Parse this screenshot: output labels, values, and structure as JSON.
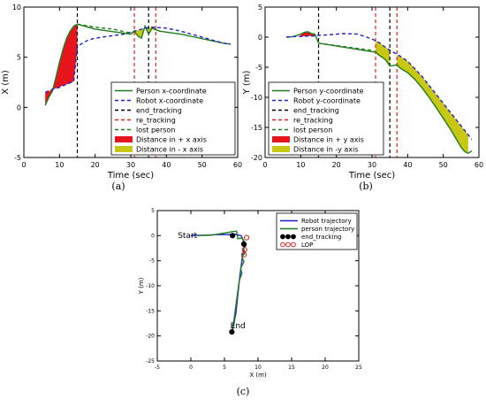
{
  "panels": [
    {
      "caption": "(a)",
      "chart_data": {
        "type": "line",
        "xlabel": "Time (sec)",
        "ylabel": "X (m)",
        "xlim": [
          0,
          60
        ],
        "ylim": [
          -5,
          10
        ],
        "xticks": [
          0,
          10,
          20,
          30,
          40,
          50,
          60
        ],
        "yticks": [
          -5,
          0,
          5,
          10
        ],
        "series": [
          {
            "name": "Person x-coordinate",
            "color": "#1e7e1e",
            "style": "solid",
            "x": [
              6,
              7,
              8,
              9,
              10,
              11,
              12,
              13,
              14,
              15,
              16,
              18,
              20,
              22,
              24,
              26,
              28,
              30,
              31,
              32,
              33,
              34,
              35,
              36,
              38,
              40,
              44,
              48,
              52,
              56,
              58
            ],
            "y": [
              0.2,
              1.0,
              1.6,
              3.0,
              4.5,
              5.8,
              6.9,
              7.6,
              8.1,
              8.3,
              8.2,
              8.0,
              7.8,
              7.7,
              7.6,
              7.5,
              7.4,
              7.3,
              7.6,
              7.1,
              6.9,
              8.1,
              7.3,
              7.9,
              7.6,
              7.5,
              7.3,
              7.0,
              6.7,
              6.4,
              6.3
            ]
          },
          {
            "name": "Robot x-coordinate",
            "color": "#1f1fd0",
            "style": "dashed",
            "x": [
              6,
              8,
              10,
              12,
              14,
              15,
              16,
              18,
              20,
              24,
              28,
              30,
              32,
              34,
              36,
              40,
              44,
              48,
              52,
              56,
              58
            ],
            "y": [
              1.5,
              1.8,
              2.0,
              2.3,
              2.6,
              6.0,
              6.3,
              6.7,
              6.9,
              7.1,
              7.3,
              7.5,
              7.7,
              7.9,
              8.0,
              7.9,
              7.6,
              7.2,
              6.8,
              6.4,
              6.3
            ]
          },
          {
            "name": "lost person",
            "color": "#1e7e1e",
            "style": "dashed",
            "x": [
              15,
              20,
              25,
              30,
              31
            ],
            "y": [
              8.3,
              8.0,
              7.8,
              7.4,
              7.6
            ]
          }
        ],
        "vlines": [
          {
            "name": "end_tracking",
            "x": [
              15,
              35
            ],
            "color": "#000000"
          },
          {
            "name": "re_tracking",
            "x": [
              31,
              37
            ],
            "color": "#e0201e"
          }
        ],
        "fills": [
          {
            "name": "Distance in + x axis",
            "color": "#e8141c",
            "x": [
              6,
              7,
              8,
              9,
              10,
              11,
              12,
              13,
              14,
              15
            ],
            "y1": [
              0.2,
              1.0,
              1.6,
              3.0,
              4.5,
              5.8,
              6.9,
              7.6,
              8.1,
              8.3
            ],
            "y2": [
              1.5,
              1.6,
              1.8,
              1.9,
              2.0,
              2.2,
              2.3,
              2.4,
              2.6,
              6.0
            ]
          },
          {
            "name": "Distance in - x axis",
            "color": "#c8c814",
            "x": [
              31,
              32,
              33,
              34,
              35,
              36,
              37
            ],
            "y1": [
              7.6,
              7.1,
              6.9,
              8.1,
              7.3,
              7.9,
              7.6
            ],
            "y2": [
              7.6,
              7.7,
              7.8,
              7.9,
              7.9,
              8.0,
              8.0
            ]
          }
        ],
        "legend": [
          "Person x-coordinate",
          "Robot x-coordinate",
          "end_tracking",
          "re_tracking",
          "lost person",
          "Distance in + x axis",
          "Distance in - x axis"
        ],
        "legend_position": "bottom-right",
        "grid": false
      }
    },
    {
      "caption": "(b)",
      "chart_data": {
        "type": "line",
        "xlabel": "Time (sec)",
        "ylabel": "Y (m)",
        "xlim": [
          0,
          60
        ],
        "ylim": [
          -20,
          5
        ],
        "xticks": [
          0,
          10,
          20,
          30,
          40,
          50,
          60
        ],
        "yticks": [
          -20,
          -15,
          -10,
          -5,
          0,
          5
        ],
        "series": [
          {
            "name": "Person y-coordinate",
            "color": "#1e7e1e",
            "style": "solid",
            "x": [
              6,
              8,
              10,
              11,
              12,
              13,
              14,
              15,
              31,
              32,
              33,
              34,
              35,
              37,
              38,
              40,
              42,
              44,
              46,
              48,
              50,
              52,
              54,
              55,
              56,
              57,
              58
            ],
            "y": [
              0.0,
              0.1,
              0.5,
              0.8,
              0.9,
              0.6,
              0.5,
              -1.0,
              -2.5,
              -3.0,
              -3.4,
              -3.9,
              -4.8,
              -4.6,
              -5.2,
              -5.9,
              -7.0,
              -8.4,
              -10.0,
              -11.7,
              -13.5,
              -15.3,
              -17.3,
              -18.3,
              -19.0,
              -19.3,
              -18.9
            ]
          },
          {
            "name": "Robot y-coordinate",
            "color": "#1f1fd0",
            "style": "dashed",
            "x": [
              6,
              8,
              10,
              12,
              14,
              15,
              18,
              22,
              26,
              30,
              32,
              34,
              36,
              38,
              40,
              44,
              48,
              52,
              56,
              58
            ],
            "y": [
              0.0,
              0.1,
              0.1,
              0.2,
              0.2,
              0.3,
              0.4,
              0.6,
              0.5,
              -0.3,
              -0.9,
              -1.8,
              -2.5,
              -3.2,
              -4.0,
              -6.5,
              -9.5,
              -12.5,
              -15.5,
              -17.0
            ]
          },
          {
            "name": "lost person",
            "color": "#1e7e1e",
            "style": "dashed",
            "x": [
              15,
              20,
              25,
              30,
              31
            ],
            "y": [
              -1.0,
              -1.4,
              -1.8,
              -2.2,
              -2.5
            ]
          }
        ],
        "vlines": [
          {
            "name": "end_tracking",
            "x": [
              15,
              35
            ],
            "color": "#000000"
          },
          {
            "name": "re_tracking",
            "x": [
              31,
              37
            ],
            "color": "#e0201e"
          }
        ],
        "fills": [
          {
            "name": "Distance in + y axis",
            "color": "#e8141c",
            "x": [
              10,
              11,
              12,
              13,
              14
            ],
            "y1": [
              0.5,
              0.8,
              0.9,
              0.6,
              0.5
            ],
            "y2": [
              0.1,
              0.15,
              0.2,
              0.2,
              0.2
            ]
          },
          {
            "name": "Distance in -y axis",
            "color": "#c8c814",
            "x": [
              31,
              32,
              33,
              34,
              35
            ],
            "y1": [
              -2.5,
              -3.0,
              -3.4,
              -3.9,
              -4.8
            ],
            "y2": [
              -0.6,
              -0.9,
              -1.3,
              -1.8,
              -2.1
            ]
          },
          {
            "name": "Distance in -y axis",
            "color": "#c8c814",
            "x": [
              37,
              38,
              40,
              42,
              44,
              46,
              48,
              50,
              52,
              54,
              56,
              57
            ],
            "y1": [
              -4.6,
              -5.2,
              -5.9,
              -7.0,
              -8.4,
              -10.0,
              -11.7,
              -13.5,
              -15.3,
              -17.3,
              -19.0,
              -19.3
            ],
            "y2": [
              -2.9,
              -3.2,
              -4.0,
              -5.2,
              -6.5,
              -8.0,
              -9.5,
              -11.0,
              -12.5,
              -14.0,
              -15.5,
              -16.2
            ]
          }
        ],
        "legend": [
          "Person y-coordinate",
          "Robot y-coordinate",
          "end_tracking",
          "re_tracking",
          "lost person",
          "Distance in + y axis",
          "Distance in -y axis"
        ],
        "legend_position": "bottom-left",
        "grid": false
      }
    },
    {
      "caption": "(c)",
      "chart_data": {
        "type": "line",
        "xlabel": "X (m)",
        "ylabel": "Y (m)",
        "xlim": [
          -5,
          25
        ],
        "ylim": [
          -25,
          5
        ],
        "xticks": [
          -5,
          0,
          5,
          10,
          15,
          20,
          25
        ],
        "yticks": [
          -25,
          -20,
          -15,
          -10,
          -5,
          0,
          5
        ],
        "series": [
          {
            "name": "Robot trajectory",
            "color": "#1f1fd0",
            "style": "solid",
            "x": [
              0,
              2,
              4,
              5.5,
              6.5,
              7.5,
              7.8,
              7.9,
              7.7,
              7.5,
              7.3,
              7.1,
              6.9,
              6.7,
              6.4,
              6.2
            ],
            "y": [
              0,
              0.1,
              0.2,
              0.2,
              0.3,
              0.0,
              -1.0,
              -2.5,
              -4.0,
              -6.0,
              -8.0,
              -10.5,
              -13.0,
              -15.5,
              -17.5,
              -19.0
            ]
          },
          {
            "name": "person trajectory",
            "color": "#1e7e1e",
            "style": "solid",
            "x": [
              1,
              3,
              5,
              6.2,
              6.8,
              7.0,
              7.6,
              7.9,
              8.2,
              7.8,
              8.1,
              7.6,
              7.9,
              7.4,
              7.6,
              7.2,
              7.0,
              6.8,
              6.6,
              6.4,
              6.2,
              6.1
            ],
            "y": [
              0.0,
              0.1,
              0.5,
              0.8,
              0.9,
              -0.6,
              -0.5,
              -1.0,
              -2.0,
              -2.6,
              -3.4,
              -4.2,
              -5.2,
              -6.5,
              -7.5,
              -9.0,
              -11.0,
              -13.0,
              -15.0,
              -17.0,
              -18.5,
              -19.3
            ]
          }
        ],
        "markers": [
          {
            "name": "end_tracking",
            "color": "#000000",
            "filled": true,
            "points": [
              [
                6.2,
                0.0
              ],
              [
                7.9,
                -1.7
              ],
              [
                6.1,
                -19.2
              ]
            ]
          },
          {
            "name": "LOP",
            "color": "#e0201e",
            "filled": false,
            "points": [
              [
                8.3,
                -0.4
              ],
              [
                8.0,
                -2.8
              ],
              [
                7.9,
                -3.8
              ]
            ]
          }
        ],
        "annotations": [
          {
            "text": "Start",
            "x": -0.5,
            "y": -0.5
          },
          {
            "text": "End",
            "x": 7.0,
            "y": -18.5
          }
        ],
        "legend": [
          "Robot trajectory",
          "person trajectory",
          "end_tracking",
          "LOP"
        ],
        "legend_position": "top-right",
        "grid": false
      }
    }
  ]
}
